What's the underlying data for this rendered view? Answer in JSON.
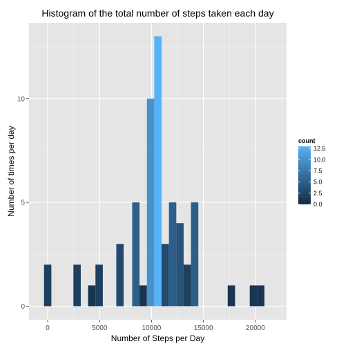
{
  "chart_data": {
    "type": "bar",
    "title": "Histogram of the total number of steps taken each day",
    "xlabel": "Number of Steps per Day",
    "ylabel": "Number of times per day",
    "xlim": [
      -1800,
      23000
    ],
    "ylim": [
      -0.65,
      13.65
    ],
    "x_ticks": [
      0,
      5000,
      10000,
      15000,
      20000
    ],
    "x_tick_labels": [
      "0",
      "5000",
      "10000",
      "15000",
      "20000"
    ],
    "y_ticks": [
      0,
      5,
      10
    ],
    "y_tick_labels": [
      "0",
      "5",
      "10"
    ],
    "bin_width": 707.5,
    "bins": [
      {
        "x": 0,
        "count": 2
      },
      {
        "x": 2830,
        "count": 2
      },
      {
        "x": 4245,
        "count": 1
      },
      {
        "x": 4953,
        "count": 2
      },
      {
        "x": 6960,
        "count": 3
      },
      {
        "x": 8490,
        "count": 5
      },
      {
        "x": 9198,
        "count": 1
      },
      {
        "x": 9905,
        "count": 10
      },
      {
        "x": 10613,
        "count": 13
      },
      {
        "x": 11320,
        "count": 3
      },
      {
        "x": 12030,
        "count": 5
      },
      {
        "x": 12735,
        "count": 4
      },
      {
        "x": 13443,
        "count": 2
      },
      {
        "x": 14150,
        "count": 5
      },
      {
        "x": 17688,
        "count": 1
      },
      {
        "x": 19810,
        "count": 1
      },
      {
        "x": 20518,
        "count": 1
      }
    ],
    "grid": true,
    "legend": {
      "title": "count",
      "placement": "right",
      "labels": [
        "12.5",
        "10.0",
        "7.5",
        "5.0",
        "2.5",
        "0.0"
      ],
      "label_values": [
        12.5,
        10.0,
        7.5,
        5.0,
        2.5,
        0.0
      ]
    },
    "colors": {
      "low": "#132B43",
      "high": "#56B1F7",
      "panel": "#e5e5e5",
      "grid_major": "#ffffff",
      "grid_minor": "#f2f2f2"
    }
  }
}
